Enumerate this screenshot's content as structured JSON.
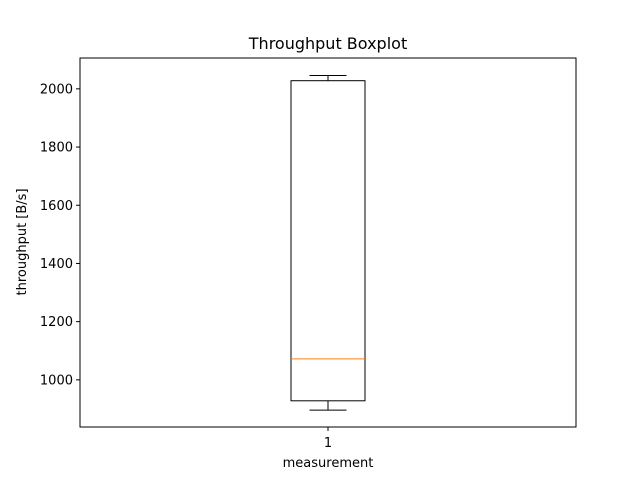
{
  "chart_data": {
    "type": "boxplot",
    "title": "Throughput Boxplot",
    "xlabel": "measurement",
    "ylabel": "throughput [B/s]",
    "categories": [
      "1"
    ],
    "ylim": [
      838,
      2106
    ],
    "yticks": [
      1000,
      1200,
      1400,
      1600,
      1800,
      2000
    ],
    "ytick_labels": [
      "1000",
      "1200",
      "1400",
      "1600",
      "1800",
      "2000"
    ],
    "series": [
      {
        "category": "1",
        "whisker_low": 896,
        "q1": 928,
        "median": 1072,
        "q3": 2028,
        "whisker_high": 2046
      }
    ],
    "grid": false,
    "colors": {
      "box": "#000000",
      "median": "#ff7f0e",
      "whisker": "#000000"
    }
  }
}
